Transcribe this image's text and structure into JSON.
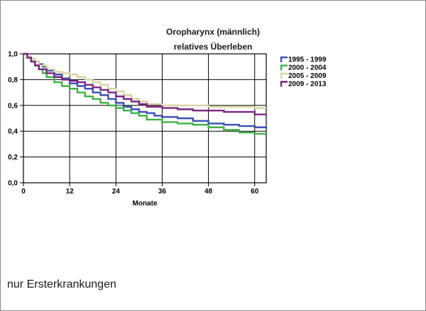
{
  "chart_data": {
    "type": "line",
    "title": "Oropharynx (männlich)",
    "subtitle": "relatives Überleben",
    "xlabel": "Monate",
    "ylabel": "",
    "xlim": [
      0,
      63
    ],
    "ylim": [
      0,
      1.0
    ],
    "x_ticks": [
      0,
      12,
      24,
      36,
      48,
      60
    ],
    "y_ticks": [
      0,
      0.2,
      0.4,
      0.6,
      0.8,
      1.0
    ],
    "y_tick_labels": [
      "0,0",
      "0,2",
      "0,4",
      "0,6",
      "0,8",
      "1,0"
    ],
    "x_tick_labels": [
      "0",
      "12",
      "24",
      "36",
      "48",
      "60"
    ],
    "grid": true,
    "legend_position": "right",
    "step": true,
    "series": [
      {
        "name": "1995 - 1999",
        "color": "#3a4fb5",
        "x": [
          0,
          1,
          2,
          3,
          4,
          5,
          6,
          8,
          10,
          12,
          14,
          16,
          18,
          20,
          22,
          24,
          26,
          28,
          30,
          32,
          34,
          36,
          40,
          44,
          48,
          52,
          56,
          60,
          63
        ],
        "y": [
          1.0,
          0.98,
          0.96,
          0.94,
          0.92,
          0.9,
          0.87,
          0.84,
          0.81,
          0.77,
          0.75,
          0.73,
          0.7,
          0.68,
          0.65,
          0.62,
          0.59,
          0.57,
          0.55,
          0.54,
          0.52,
          0.51,
          0.5,
          0.48,
          0.46,
          0.45,
          0.44,
          0.43,
          0.42
        ]
      },
      {
        "name": "2000 - 2004",
        "color": "#3fb045",
        "x": [
          0,
          1,
          2,
          3,
          4,
          5,
          6,
          8,
          10,
          12,
          14,
          16,
          18,
          20,
          22,
          24,
          26,
          28,
          30,
          32,
          36,
          40,
          44,
          48,
          52,
          56,
          60,
          63
        ],
        "y": [
          1.0,
          0.97,
          0.94,
          0.91,
          0.88,
          0.85,
          0.82,
          0.78,
          0.75,
          0.73,
          0.7,
          0.67,
          0.65,
          0.62,
          0.6,
          0.58,
          0.56,
          0.54,
          0.52,
          0.49,
          0.47,
          0.46,
          0.45,
          0.43,
          0.41,
          0.39,
          0.38,
          0.38
        ]
      },
      {
        "name": "2005 - 2009",
        "color": "#d8d2a4",
        "x": [
          0,
          1,
          2,
          3,
          4,
          6,
          8,
          10,
          12,
          14,
          16,
          18,
          20,
          22,
          24,
          26,
          28,
          30,
          32,
          36,
          40,
          44,
          48,
          52,
          56,
          60,
          63
        ],
        "y": [
          1.0,
          0.98,
          0.96,
          0.94,
          0.91,
          0.88,
          0.86,
          0.85,
          0.84,
          0.82,
          0.8,
          0.78,
          0.76,
          0.73,
          0.71,
          0.68,
          0.65,
          0.63,
          0.61,
          0.6,
          0.6,
          0.6,
          0.59,
          0.59,
          0.59,
          0.58,
          0.58
        ]
      },
      {
        "name": "2009 - 2013",
        "color": "#7a2380",
        "x": [
          0,
          1,
          2,
          3,
          4,
          6,
          8,
          10,
          12,
          14,
          16,
          18,
          20,
          22,
          24,
          26,
          28,
          30,
          32,
          36,
          40,
          44,
          48,
          52,
          56,
          60,
          63
        ],
        "y": [
          1.0,
          0.97,
          0.94,
          0.91,
          0.88,
          0.85,
          0.82,
          0.8,
          0.79,
          0.78,
          0.76,
          0.74,
          0.72,
          0.7,
          0.67,
          0.65,
          0.63,
          0.61,
          0.59,
          0.58,
          0.57,
          0.56,
          0.56,
          0.55,
          0.55,
          0.53,
          0.53
        ]
      }
    ]
  },
  "footnote": "nur Ersterkrankungen"
}
